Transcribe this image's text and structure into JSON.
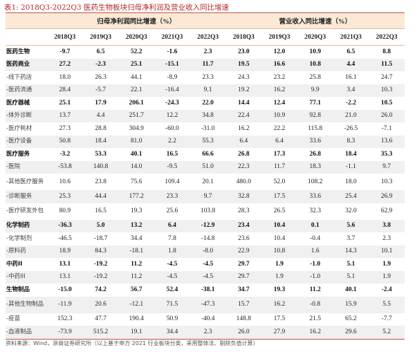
{
  "title": "表1:   2018Q3-2022Q3 医药生物板块归母净利润及营业收入同比增速",
  "groups": [
    "归母净利润同比增速（%）",
    "营业收入同比增速（%）"
  ],
  "years": [
    "2018Q3",
    "2019Q3",
    "2020Q3",
    "2021Q3",
    "2022Q3",
    "2018Q3",
    "2019Q3",
    "2020Q3",
    "2021Q3",
    "2022Q3"
  ],
  "rows": [
    {
      "name": "医药生物",
      "bold": true,
      "v": [
        "-9.7",
        "6.5",
        "52.2",
        "-1.6",
        "2.3",
        "23.0",
        "12.0",
        "10.9",
        "6.5",
        "8.8"
      ]
    },
    {
      "name": "医药商业",
      "bold": true,
      "v": [
        "27.2",
        "-2.3",
        "25.1",
        "-15.1",
        "11.7",
        "19.5",
        "16.6",
        "10.8",
        "4.4",
        "11.5"
      ]
    },
    {
      "name": "-线下药店",
      "v": [
        "18.0",
        "26.3",
        "44.1",
        "-8.9",
        "23.3",
        "24.3",
        "23.2",
        "25.8",
        "16.1",
        "24.7"
      ]
    },
    {
      "name": "-医药流通",
      "v": [
        "28.4",
        "-5.7",
        "22.1",
        "-16.4",
        "9.1",
        "19.2",
        "16.2",
        "9.9",
        "3.4",
        "10.3"
      ]
    },
    {
      "name": "医疗器械",
      "bold": true,
      "v": [
        "25.1",
        "17.9",
        "206.1",
        "-24.3",
        "22.0",
        "14.4",
        "12.4",
        "77.1",
        "-2.2",
        "10.5"
      ]
    },
    {
      "name": "-体外诊断",
      "v": [
        "13.7",
        "4.4",
        "251.7",
        "12.2",
        "34.8",
        "22.4",
        "10.9",
        "92.8",
        "21.0",
        "26.0"
      ]
    },
    {
      "name": "-医疗耗材",
      "v": [
        "27.3",
        "28.8",
        "304.9",
        "-60.0",
        "-31.0",
        "16.2",
        "22.2",
        "115.8",
        "-26.5",
        "-7.1"
      ]
    },
    {
      "name": "-医疗设备",
      "v": [
        "50.8",
        "18.4",
        "81.0",
        "2.2",
        "55.3",
        "6.4",
        "6.4",
        "33.6",
        "8.3",
        "13.6"
      ]
    },
    {
      "name": "医疗服务",
      "bold": true,
      "v": [
        "-3.2",
        "53.3",
        "40.1",
        "16.5",
        "66.6",
        "26.8",
        "17.3",
        "26.8",
        "18.4",
        "35.3"
      ]
    },
    {
      "name": "-医院",
      "v": [
        "-53.8",
        "140.8",
        "14.0",
        "-9.5",
        "51.0",
        "22.3",
        "11.7",
        "18.3",
        "-1.1",
        "9.7"
      ]
    },
    {
      "name": "-其他医疗服务",
      "two": true,
      "v": [
        "10.6",
        "23.8",
        "75.6",
        "109.4",
        "20.1",
        "480.0",
        "52.0",
        "108.2",
        "18.0",
        "10.3"
      ]
    },
    {
      "name": "-诊断服务",
      "v": [
        "25.3",
        "44.4",
        "177.2",
        "23.3",
        "9.7",
        "32.8",
        "17.5",
        "33.6",
        "25.4",
        "26.9"
      ]
    },
    {
      "name": "-医疗研发外包",
      "two": true,
      "v": [
        "80.9",
        "16.5",
        "19.3",
        "25.6",
        "103.8",
        "28.3",
        "26.5",
        "32.3",
        "32.0",
        "62.9"
      ]
    },
    {
      "name": "化学制药",
      "bold": true,
      "v": [
        "-36.3",
        "5.0",
        "13.2",
        "6.4",
        "-12.9",
        "23.4",
        "10.4",
        "0.1",
        "5.6",
        "3.8"
      ]
    },
    {
      "name": "-化学制剂",
      "v": [
        "-46.5",
        "-18.7",
        "34.4",
        "7.8",
        "-14.8",
        "23.6",
        "10.4",
        "-0.4",
        "3.7",
        "2.3"
      ]
    },
    {
      "name": "-原料药",
      "v": [
        "18.9",
        "84.3",
        "-18.1",
        "1.8",
        "-8.0",
        "22.9",
        "10.8",
        "1.6",
        "14.3",
        "10.1"
      ]
    },
    {
      "name": "中药II",
      "bold": true,
      "v": [
        "13.1",
        "-19.2",
        "11.2",
        "-4.5",
        "-4.5",
        "29.7",
        "1.9",
        "-1.0",
        "5.1",
        "1.9"
      ]
    },
    {
      "name": "-中药III",
      "v": [
        "13.1",
        "-19.2",
        "11.2",
        "-4.5",
        "-4.5",
        "29.7",
        "1.9",
        "-1.0",
        "5.1",
        "1.9"
      ]
    },
    {
      "name": "生物制品",
      "bold": true,
      "v": [
        "-15.0",
        "74.2",
        "56.7",
        "52.4",
        "-38.1",
        "34.7",
        "19.3",
        "11.2",
        "40.1",
        "-2.4"
      ]
    },
    {
      "name": "-其他生物制品",
      "two": true,
      "v": [
        "-11.9",
        "20.6",
        "-12.1",
        "71.5",
        "-47.3",
        "15.7",
        "16.2",
        "-0.8",
        "15.9",
        "5.5"
      ]
    },
    {
      "name": "-疫苗",
      "v": [
        "152.3",
        "47.7",
        "190.4",
        "50.9",
        "-40.4",
        "148.8",
        "17.5",
        "21.5",
        "65.2",
        "-7.7"
      ]
    },
    {
      "name": "-血液制品",
      "v": [
        "-73.9",
        "515.2",
        "19.1",
        "34.4",
        "2.3",
        "26.0",
        "27.9",
        "16.2",
        "29.6",
        "5.2"
      ]
    }
  ],
  "note": "资料来源：Wind，浙商证券研究所（以上基于申万 2021 行业板块分类，采用整体法、剔除负值计算）"
}
